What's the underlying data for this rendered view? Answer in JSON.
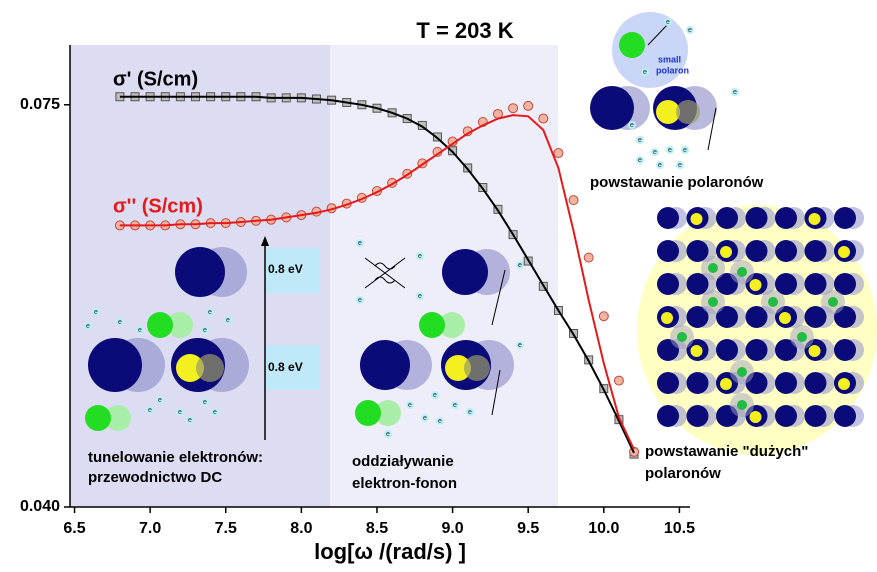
{
  "chart_data": {
    "type": "line",
    "title": "T = 203 K",
    "x_label": "log[ω /(rad/s)  ]",
    "x": [
      6.8,
      6.9,
      7.0,
      7.1,
      7.2,
      7.3,
      7.4,
      7.5,
      7.6,
      7.7,
      7.8,
      7.9,
      8.0,
      8.1,
      8.2,
      8.3,
      8.4,
      8.5,
      8.6,
      8.7,
      8.8,
      8.9,
      9.0,
      9.1,
      9.2,
      9.3,
      9.4,
      9.5,
      9.6,
      9.7,
      9.8,
      9.9,
      10.0,
      10.1,
      10.2
    ],
    "series": [
      {
        "name": "σ' (S/cm)",
        "color": "#bdbdbd",
        "marker": "square",
        "values": [
          0.0757,
          0.0757,
          0.0757,
          0.0757,
          0.0757,
          0.0757,
          0.0757,
          0.0757,
          0.0757,
          0.0757,
          0.0756,
          0.0756,
          0.0756,
          0.0755,
          0.0754,
          0.0752,
          0.075,
          0.0747,
          0.0743,
          0.0738,
          0.0732,
          0.0722,
          0.071,
          0.0695,
          0.0678,
          0.0659,
          0.0637,
          0.0614,
          0.0592,
          0.0571,
          0.0551,
          0.0528,
          0.0503,
          0.0476,
          0.0446
        ]
      },
      {
        "name": "σ'' (S/cm)",
        "color": "#f2b4a2",
        "marker": "circle",
        "values": [
          0.0645,
          0.0645,
          0.0645,
          0.0645,
          0.0646,
          0.0646,
          0.0647,
          0.0647,
          0.0648,
          0.0649,
          0.065,
          0.0652,
          0.0654,
          0.0657,
          0.066,
          0.0664,
          0.0669,
          0.0675,
          0.0682,
          0.069,
          0.0699,
          0.0709,
          0.0718,
          0.0727,
          0.0735,
          0.0742,
          0.0747,
          0.0749,
          0.0738,
          0.0708,
          0.0667,
          0.0617,
          0.0566,
          0.051,
          0.0448
        ]
      },
      {
        "color": "#000000",
        "values": [
          0.0757,
          0.0757,
          0.0757,
          0.0757,
          0.0757,
          0.0757,
          0.0757,
          0.0757,
          0.0757,
          0.0757,
          0.0756,
          0.0756,
          0.0756,
          0.0755,
          0.0754,
          0.0752,
          0.075,
          0.0747,
          0.0743,
          0.0738,
          0.0731,
          0.0721,
          0.0709,
          0.0694,
          0.0677,
          0.0658,
          0.0637,
          0.0615,
          0.0593,
          0.0571,
          0.055,
          0.0527,
          0.0502,
          0.0475,
          0.0447
        ]
      },
      {
        "color": "#e41a1a",
        "values": [
          0.0645,
          0.0645,
          0.0645,
          0.0645,
          0.0646,
          0.0646,
          0.0647,
          0.0647,
          0.0648,
          0.0649,
          0.065,
          0.0652,
          0.0654,
          0.0656,
          0.0659,
          0.0663,
          0.0668,
          0.0674,
          0.0681,
          0.0689,
          0.0698,
          0.0707,
          0.0716,
          0.0725,
          0.0732,
          0.0738,
          0.0741,
          0.074,
          0.0728,
          0.0695,
          0.064,
          0.058,
          0.0525,
          0.0478,
          0.045
        ]
      }
    ],
    "xlim": [
      6.47,
      10.57
    ],
    "ylim": [
      0.04,
      0.0802
    ],
    "xticks": [
      6.5,
      {
        "value": 7.0,
        "label": "7.0"
      },
      7.5,
      {
        "value": 8.0,
        "label": "8.0"
      },
      8.5,
      {
        "value": 9.0,
        "label": "9.0"
      },
      9.5,
      {
        "value": 10.0,
        "label": "10.0"
      },
      10.5
    ],
    "yticks": [
      {
        "value": 0.04,
        "label": "0.040"
      },
      0.075
    ],
    "annotations": {
      "energy": [
        "0.8 eV",
        "0.8 eV"
      ],
      "small_polaron": [
        "small",
        "polaron"
      ],
      "electron": "e",
      "tunneling": [
        "tunelowanie elektronów:",
        "przewodnictwo DC"
      ],
      "phonon": [
        "oddziaływanie",
        "elektron-fonon"
      ],
      "polarons": "powstawanie polaronów",
      "large_polarons": [
        "powstawanie \"dużych\"",
        "polaronów"
      ]
    }
  }
}
